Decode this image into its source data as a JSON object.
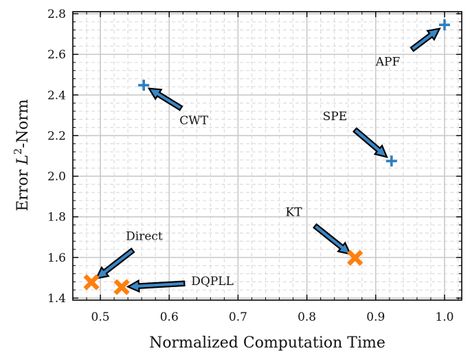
{
  "chart_data": {
    "type": "scatter",
    "title": "",
    "xlabel": "Normalized Computation Time",
    "ylabel_prefix": "Error ",
    "ylabel_italic": "L",
    "ylabel_sup": "2",
    "ylabel_suffix": "-Norm",
    "xlim": [
      0.46,
      1.025
    ],
    "ylim": [
      1.39,
      2.81
    ],
    "grid": true,
    "xticks": [
      0.5,
      0.6,
      0.7,
      0.8,
      0.9,
      1.0
    ],
    "xtick_labels": [
      "0.5",
      "0.6",
      "0.7",
      "0.8",
      "0.9",
      "1.0"
    ],
    "yticks": [
      1.4,
      1.6,
      1.8,
      2.0,
      2.2,
      2.4,
      2.6,
      2.8
    ],
    "ytick_labels": [
      "1.4",
      "1.6",
      "1.8",
      "2.0",
      "2.2",
      "2.4",
      "2.6",
      "2.8"
    ],
    "series": [
      {
        "marker": "plus",
        "color": "#2f7fbf",
        "points": [
          {
            "label": "APF",
            "x": 1.0,
            "y": 2.745
          },
          {
            "label": "CWT",
            "x": 0.563,
            "y": 2.448
          },
          {
            "label": "SPE",
            "x": 0.923,
            "y": 2.075
          }
        ]
      },
      {
        "marker": "x-filled",
        "color": "#ff7f0e",
        "points": [
          {
            "label": "KT",
            "x": 0.87,
            "y": 1.598
          },
          {
            "label": "Direct",
            "x": 0.487,
            "y": 1.478
          },
          {
            "label": "DQPLL",
            "x": 0.531,
            "y": 1.454
          }
        ]
      }
    ],
    "annotations": [
      {
        "text": "APF",
        "point": "APF",
        "text_x": 0.9,
        "text_y": 2.545,
        "arrow_from_x": 0.953,
        "arrow_from_y": 2.625
      },
      {
        "text": "CWT",
        "point": "CWT",
        "text_x": 0.615,
        "text_y": 2.255,
        "arrow_from_x": 0.617,
        "arrow_from_y": 2.335
      },
      {
        "text": "SPE",
        "point": "SPE",
        "text_x": 0.823,
        "text_y": 2.275,
        "arrow_from_x": 0.87,
        "arrow_from_y": 2.228
      },
      {
        "text": "KT",
        "point": "KT",
        "text_x": 0.769,
        "text_y": 1.805,
        "arrow_from_x": 0.812,
        "arrow_from_y": 1.755
      },
      {
        "text": "Direct",
        "point": "Direct",
        "text_x": 0.537,
        "text_y": 1.685,
        "arrow_from_x": 0.547,
        "arrow_from_y": 1.635
      },
      {
        "text": "DQPLL",
        "point": "DQPLL",
        "text_x": 0.632,
        "text_y": 1.465,
        "arrow_from_x": 0.622,
        "arrow_from_y": 1.472
      }
    ],
    "colors": {
      "arrow_fill": "#3a86c5",
      "arrow_edge": "#000000",
      "grid_major": "#c8c8c8",
      "grid_minor": "#dcdcdc"
    }
  }
}
